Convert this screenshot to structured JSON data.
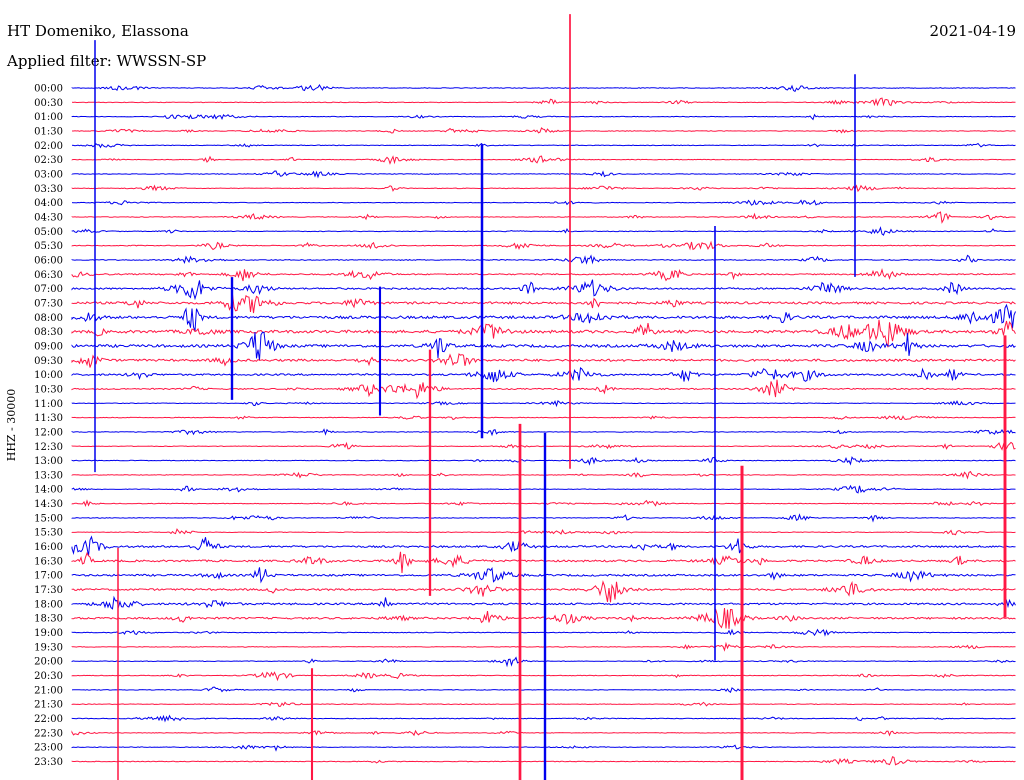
{
  "station": "HT Domeniko, Elassona",
  "filter_label": "Applied filter: WWSSN-SP",
  "date": "2021-04-19",
  "channel_label": "HHZ - 30000",
  "colors": {
    "blue": "#0000ee",
    "red": "#ff1744",
    "black": "#000000"
  },
  "chart_data": {
    "type": "helicorder",
    "row_labels": [
      "00:00",
      "00:30",
      "01:00",
      "01:30",
      "02:00",
      "02:30",
      "03:00",
      "03:30",
      "04:00",
      "04:30",
      "05:00",
      "05:30",
      "06:00",
      "06:30",
      "07:00",
      "07:30",
      "08:00",
      "08:30",
      "09:00",
      "09:30",
      "10:00",
      "10:30",
      "11:00",
      "11:30",
      "12:00",
      "12:30",
      "13:00",
      "13:30",
      "14:00",
      "14:30",
      "15:00",
      "15:30",
      "16:00",
      "16:30",
      "17:00",
      "17:30",
      "18:00",
      "18:30",
      "19:00",
      "19:30",
      "20:00",
      "20:30",
      "21:00",
      "21:30",
      "22:00",
      "22:30",
      "23:00",
      "23:30"
    ],
    "trace_colors": [
      "blue",
      "red"
    ]
  }
}
